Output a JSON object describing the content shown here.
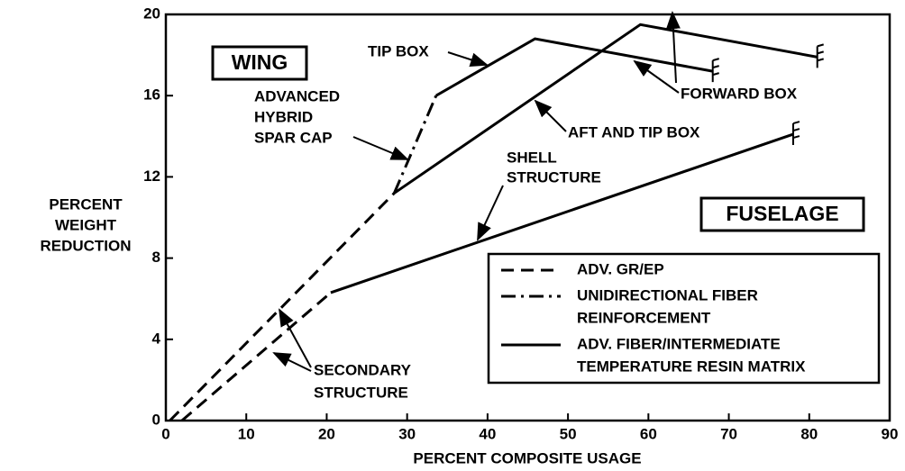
{
  "chart_data": {
    "type": "line",
    "xlabel": "PERCENT COMPOSITE USAGE",
    "ylabel": [
      "PERCENT",
      "WEIGHT",
      "REDUCTION"
    ],
    "xlim": [
      0,
      90
    ],
    "xticks": [
      0,
      10,
      20,
      30,
      40,
      50,
      60,
      70,
      80,
      90
    ],
    "ylim": [
      0,
      20
    ],
    "yticks": [
      0,
      4,
      8,
      12,
      16,
      20
    ],
    "color": "#000000",
    "legend": [
      {
        "style": "dashed",
        "label": [
          "ADV. GR/EP"
        ]
      },
      {
        "style": "dashdot",
        "label": [
          "UNIDIRECTIONAL FIBER",
          "REINFORCEMENT"
        ]
      },
      {
        "style": "solid",
        "label": [
          "ADV. FIBER/INTERMEDIATE",
          "TEMPERATURE RESIN MATRIX"
        ]
      }
    ],
    "lines": [
      {
        "style": "dashed",
        "x": [
          0.5,
          28.4
        ],
        "values": [
          0,
          11.2
        ]
      },
      {
        "style": "dashdot",
        "x": [
          28.4,
          33.6
        ],
        "values": [
          11.2,
          16
        ]
      },
      {
        "style": "solid",
        "x": [
          33.6,
          45.9,
          68
        ],
        "values": [
          16,
          18.8,
          17.2
        ]
      },
      {
        "style": "solid",
        "x": [
          28.4,
          59,
          81
        ],
        "values": [
          11.2,
          19.5,
          17.9
        ]
      },
      {
        "style": "dashed",
        "x": [
          2,
          20.5
        ],
        "values": [
          0,
          6.3
        ]
      },
      {
        "style": "solid",
        "x": [
          20.5,
          78
        ],
        "values": [
          6.3,
          14.1
        ]
      }
    ],
    "annotations": {
      "wing": "WING",
      "fuselage": "FUSELAGE",
      "tip_box": "TIP BOX",
      "spar_cap": [
        "ADVANCED",
        "HYBRID",
        "SPAR CAP"
      ],
      "aft_tip_box": "AFT AND TIP BOX",
      "forward_box": "FORWARD BOX",
      "shell": [
        "SHELL",
        "STRUCTURE"
      ],
      "secondary": [
        "SECONDARY",
        "STRUCTURE"
      ]
    }
  }
}
